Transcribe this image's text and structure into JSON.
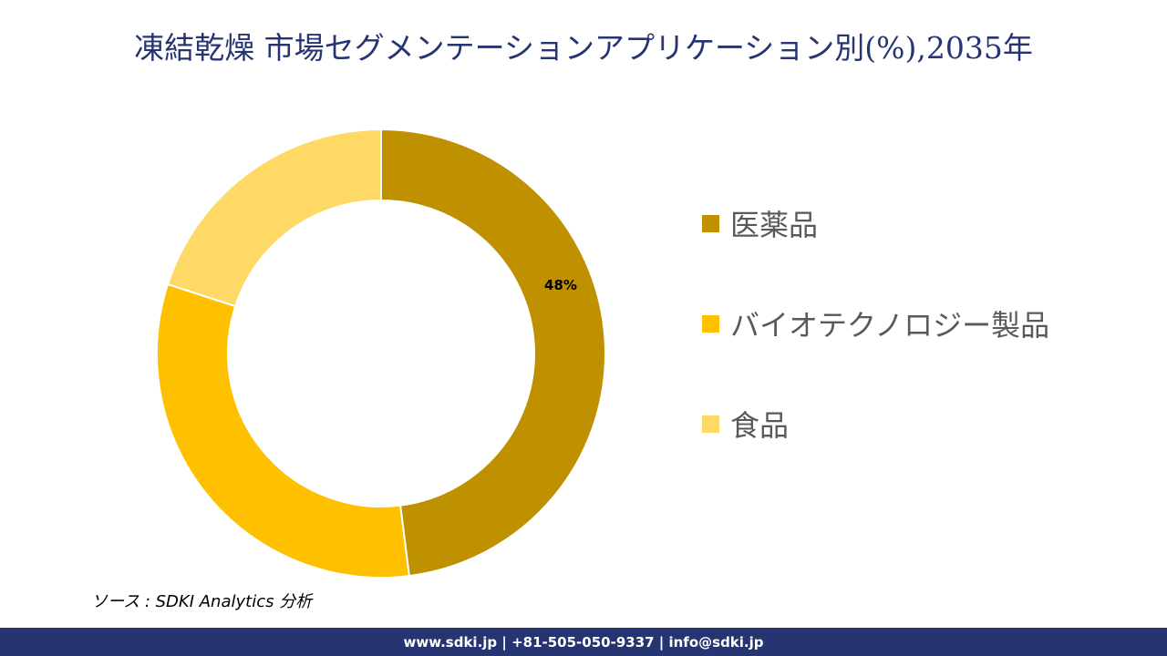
{
  "title": "凍結乾燥 市場セグメンテーションアプリケーション別(%),2035年",
  "chart_data": {
    "type": "pie",
    "subtype": "donut",
    "title": "凍結乾燥 市場セグメンテーションアプリケーション別(%),2035年",
    "categories": [
      "医薬品",
      "バイオテクノロジー製品",
      "食品"
    ],
    "values": [
      48,
      32,
      20
    ],
    "unit": "%",
    "colors": [
      "#BF9000",
      "#FFC000",
      "#FFD966"
    ],
    "data_labels": [
      {
        "category": "医薬品",
        "label": "48%"
      }
    ],
    "legend_position": "right"
  },
  "legend": {
    "items": [
      {
        "label": "医薬品",
        "color": "#BF9000"
      },
      {
        "label": "バイオテクノロジー製品",
        "color": "#FFC000"
      },
      {
        "label": "食品",
        "color": "#FFD966"
      }
    ]
  },
  "labels": {
    "pharma": "48%"
  },
  "source": "ソース : SDKI Analytics  分析",
  "footer": "www.sdki.jp | +81-505-050-9337 | info@sdki.jp"
}
